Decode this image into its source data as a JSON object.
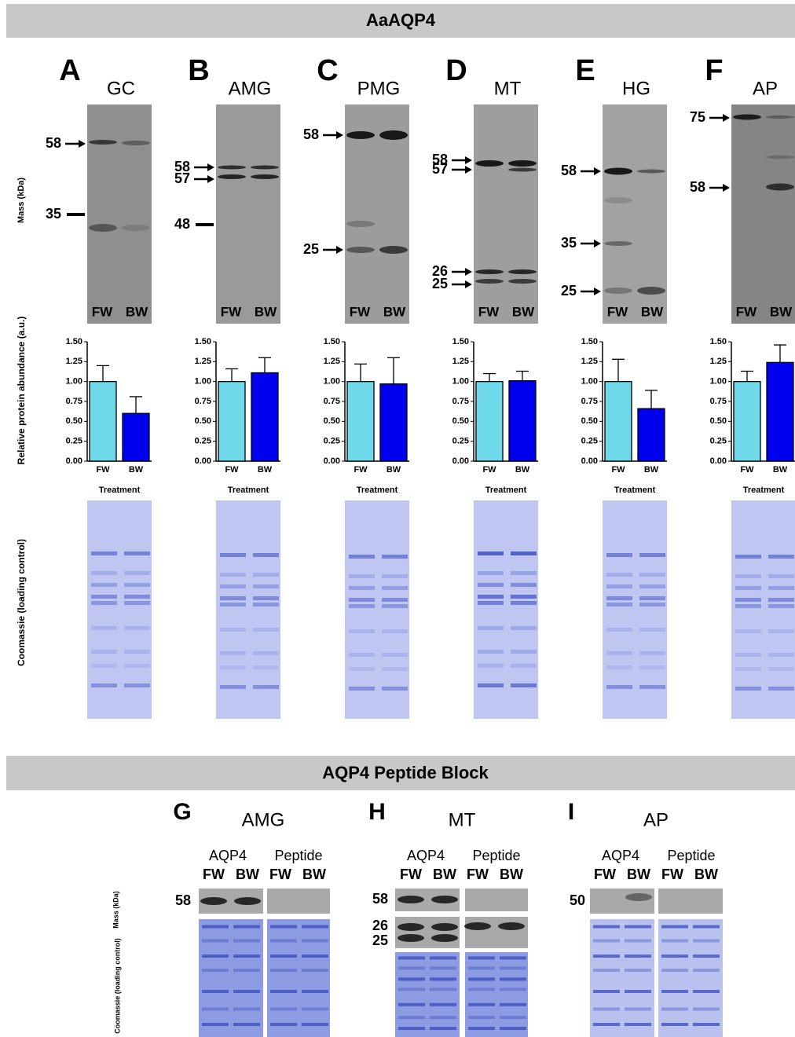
{
  "header": "AaAQP4",
  "axis_labels": {
    "mass": "Mass (kDa)",
    "abundance": "Relative protein abundance (a.u.)",
    "coomassie": "Coomassie (loading control)"
  },
  "panels": [
    {
      "letter": "A",
      "tissue": "GC",
      "markers": [
        58,
        35
      ],
      "lanes": [
        "FW",
        "BW"
      ]
    },
    {
      "letter": "B",
      "tissue": "AMG",
      "markers": [
        58,
        57,
        48
      ],
      "lanes": [
        "FW",
        "BW"
      ]
    },
    {
      "letter": "C",
      "tissue": "PMG",
      "markers": [
        58,
        25
      ],
      "lanes": [
        "FW",
        "BW"
      ]
    },
    {
      "letter": "D",
      "tissue": "MT",
      "markers": [
        58,
        57,
        26,
        25
      ],
      "lanes": [
        "FW",
        "BW"
      ]
    },
    {
      "letter": "E",
      "tissue": "HG",
      "markers": [
        58,
        35,
        25
      ],
      "lanes": [
        "FW",
        "BW"
      ]
    },
    {
      "letter": "F",
      "tissue": "AP",
      "markers": [
        75,
        58
      ],
      "lanes": [
        "FW",
        "BW"
      ]
    }
  ],
  "chart_data": [
    {
      "type": "bar",
      "categories": [
        "FW",
        "BW"
      ],
      "values": [
        1.0,
        0.6
      ],
      "errors": [
        0.2,
        0.21
      ],
      "colors": [
        "#6fd9ea",
        "#0000ee"
      ],
      "xlabel": "Treatment",
      "ylim": [
        0,
        1.5
      ],
      "yticks": [
        {
          "value": 0,
          "label": "0.00"
        },
        {
          "value": 0.25,
          "label": "0.25"
        },
        {
          "value": 0.5,
          "label": "0.50"
        },
        {
          "value": 0.75,
          "label": "0.75"
        },
        {
          "value": 1,
          "label": "1.00"
        },
        {
          "value": 1.25,
          "label": "1.25"
        },
        {
          "value": 1.5,
          "label": "1.50"
        }
      ]
    },
    {
      "type": "bar",
      "categories": [
        "FW",
        "BW"
      ],
      "values": [
        1.0,
        1.11
      ],
      "errors": [
        0.16,
        0.19
      ],
      "colors": [
        "#6fd9ea",
        "#0000ee"
      ],
      "xlabel": "Treatment",
      "ylim": [
        0,
        1.5
      ],
      "yticks": [
        {
          "value": 0,
          "label": "0.00"
        },
        {
          "value": 0.25,
          "label": "0.25"
        },
        {
          "value": 0.5,
          "label": "0.50"
        },
        {
          "value": 0.75,
          "label": "0.75"
        },
        {
          "value": 1,
          "label": "1.00"
        },
        {
          "value": 1.25,
          "label": "1.25"
        },
        {
          "value": 1.5,
          "label": "1.50"
        }
      ]
    },
    {
      "type": "bar",
      "categories": [
        "FW",
        "BW"
      ],
      "values": [
        1.0,
        0.97
      ],
      "errors": [
        0.22,
        0.33
      ],
      "colors": [
        "#6fd9ea",
        "#0000ee"
      ],
      "xlabel": "Treatment",
      "ylim": [
        0,
        1.5
      ],
      "yticks": [
        {
          "value": 0,
          "label": "0.00"
        },
        {
          "value": 0.25,
          "label": "0.25"
        },
        {
          "value": 0.5,
          "label": "0.50"
        },
        {
          "value": 0.75,
          "label": "0.75"
        },
        {
          "value": 1,
          "label": "1.00"
        },
        {
          "value": 1.25,
          "label": "1.25"
        },
        {
          "value": 1.5,
          "label": "1.50"
        }
      ]
    },
    {
      "type": "bar",
      "categories": [
        "FW",
        "BW"
      ],
      "values": [
        1.0,
        1.01
      ],
      "errors": [
        0.1,
        0.12
      ],
      "colors": [
        "#6fd9ea",
        "#0000ee"
      ],
      "xlabel": "Treatment",
      "ylim": [
        0,
        1.5
      ],
      "yticks": [
        {
          "value": 0,
          "label": "0.00"
        },
        {
          "value": 0.25,
          "label": "0.25"
        },
        {
          "value": 0.5,
          "label": "0.50"
        },
        {
          "value": 0.75,
          "label": "0.75"
        },
        {
          "value": 1,
          "label": "1.00"
        },
        {
          "value": 1.25,
          "label": "1.25"
        },
        {
          "value": 1.5,
          "label": "1.50"
        }
      ]
    },
    {
      "type": "bar",
      "categories": [
        "FW",
        "BW"
      ],
      "values": [
        1.0,
        0.66
      ],
      "errors": [
        0.28,
        0.23
      ],
      "colors": [
        "#6fd9ea",
        "#0000ee"
      ],
      "xlabel": "Treatment",
      "ylim": [
        0,
        1.5
      ],
      "yticks": [
        {
          "value": 0,
          "label": "0.00"
        },
        {
          "value": 0.25,
          "label": "0.25"
        },
        {
          "value": 0.5,
          "label": "0.50"
        },
        {
          "value": 0.75,
          "label": "0.75"
        },
        {
          "value": 1,
          "label": "1.00"
        },
        {
          "value": 1.25,
          "label": "1.25"
        },
        {
          "value": 1.5,
          "label": "1.50"
        }
      ]
    },
    {
      "type": "bar",
      "categories": [
        "FW",
        "BW"
      ],
      "values": [
        1.0,
        1.24
      ],
      "errors": [
        0.13,
        0.22
      ],
      "colors": [
        "#6fd9ea",
        "#0000ee"
      ],
      "xlabel": "Treatment",
      "ylim": [
        0,
        1.5
      ],
      "yticks": [
        {
          "value": 0,
          "label": "0.00"
        },
        {
          "value": 0.25,
          "label": "0.25"
        },
        {
          "value": 0.5,
          "label": "0.50"
        },
        {
          "value": 0.75,
          "label": "0.75"
        },
        {
          "value": 1,
          "label": "1.00"
        },
        {
          "value": 1.25,
          "label": "1.25"
        },
        {
          "value": 1.5,
          "label": "1.50"
        }
      ]
    }
  ],
  "peptide_block": {
    "header": "AQP4 Peptide Block",
    "mass_label": "Mass (kDa)",
    "coomassie_label": "Coomassie (loading control)",
    "panels": [
      {
        "letter": "G",
        "tissue": "AMG",
        "groups": [
          "AQP4",
          "Peptide"
        ],
        "lanes": [
          "FW",
          "BW",
          "FW",
          "BW"
        ],
        "markers": [
          58
        ]
      },
      {
        "letter": "H",
        "tissue": "MT",
        "groups": [
          "AQP4",
          "Peptide"
        ],
        "lanes": [
          "FW",
          "BW",
          "FW",
          "BW"
        ],
        "markers": [
          58,
          26,
          25
        ]
      },
      {
        "letter": "I",
        "tissue": "AP",
        "groups": [
          "AQP4",
          "Peptide"
        ],
        "lanes": [
          "FW",
          "BW",
          "FW",
          "BW"
        ],
        "markers": [
          50
        ]
      }
    ]
  }
}
